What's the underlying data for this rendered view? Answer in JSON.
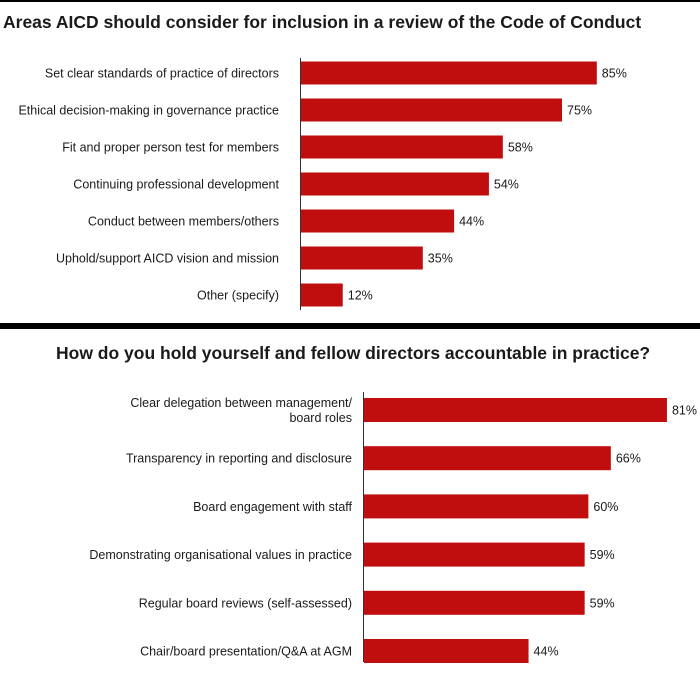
{
  "chart_data": [
    {
      "type": "bar",
      "orientation": "horizontal",
      "title": "Areas AICD should consider for inclusion in a review of the Code of Conduct",
      "categories": [
        "Set clear standards of practice of directors",
        "Ethical decision-making in governance practice",
        "Fit and proper person test for members",
        "Continuing professional development",
        "Conduct between members/others",
        "Uphold/support AICD vision and mission",
        "Other (specify)"
      ],
      "values": [
        85,
        75,
        58,
        54,
        44,
        35,
        12
      ],
      "value_labels": [
        "85%",
        "75%",
        "58%",
        "54%",
        "44%",
        "35%",
        "12%"
      ],
      "unit": "%",
      "bar_color": "#c00d0d",
      "grid": false,
      "legend": "none"
    },
    {
      "type": "bar",
      "orientation": "horizontal",
      "title": "How do you hold yourself and fellow directors accountable in practice?",
      "categories": [
        [
          "Clear delegation between management/",
          "board roles"
        ],
        [
          "Transparency in reporting and disclosure"
        ],
        [
          "Board engagement with staff"
        ],
        [
          "Demonstrating organisational values in practice"
        ],
        [
          "Regular board reviews (self-assessed)"
        ],
        [
          "Chair/board presentation/Q&A at AGM"
        ]
      ],
      "values": [
        81,
        66,
        60,
        59,
        59,
        44
      ],
      "value_labels": [
        "81%",
        "66%",
        "60%",
        "59%",
        "59%",
        "44%"
      ],
      "unit": "%",
      "bar_color": "#c00d0d",
      "grid": false,
      "legend": "none"
    }
  ]
}
